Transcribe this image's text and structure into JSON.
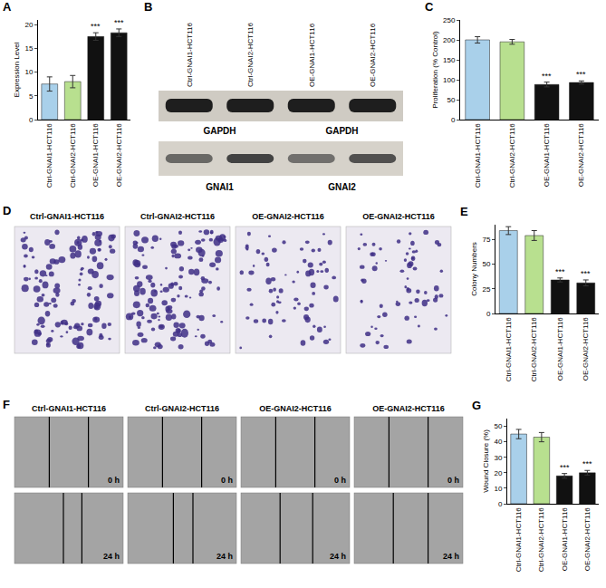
{
  "chart_data": [
    {
      "panel": "A",
      "type": "bar",
      "categories": [
        "Ctrl-GNAI1-HCT116",
        "Ctrl-GNAI2-HCT116",
        "OE-GNAI1-HCT116",
        "OE-GNAI2-HCT116"
      ],
      "values": [
        7.5,
        8,
        17.5,
        18.3
      ],
      "errors": [
        1.5,
        1.3,
        0.8,
        0.8
      ],
      "significance": [
        null,
        null,
        "***",
        "***"
      ],
      "colors": [
        "#a9d0ea",
        "#b8e08f",
        "#111111",
        "#111111"
      ],
      "y_label": "Expression Level",
      "ylim": [
        0,
        21
      ],
      "yticks": [
        0,
        5,
        10,
        15,
        20
      ],
      "grid": false
    },
    {
      "panel": "C",
      "type": "bar",
      "categories": [
        "Ctrl-GNAI1-HCT116",
        "Ctrl-GNAI2-HCT116",
        "OE-GNAI1-HCT116",
        "OE-GNAI2-HCT116"
      ],
      "values": [
        200,
        195,
        88,
        93
      ],
      "errors": [
        8,
        6,
        6,
        4
      ],
      "significance": [
        null,
        null,
        "***",
        "***"
      ],
      "colors": [
        "#a9d0ea",
        "#b8e08f",
        "#111111",
        "#111111"
      ],
      "y_label": "Proliferation (% Control)",
      "ylim": [
        0,
        250
      ],
      "yticks": [
        0,
        50,
        100,
        150,
        200,
        250
      ],
      "grid": false
    },
    {
      "panel": "E",
      "type": "bar",
      "categories": [
        "Ctrl-GNAI1-HCT116",
        "Ctrl-GNAI2-HCT116",
        "OE-GNAI1-HCT116",
        "OE-GNAI2-HCT116"
      ],
      "values": [
        84,
        79,
        34,
        31
      ],
      "errors": [
        4,
        5,
        2,
        3
      ],
      "significance": [
        null,
        null,
        "***",
        "***"
      ],
      "colors": [
        "#a9d0ea",
        "#b8e08f",
        "#111111",
        "#111111"
      ],
      "y_label": "Colony Numbers",
      "ylim": [
        0,
        90
      ],
      "yticks": [
        0,
        25,
        50,
        75
      ],
      "grid": false
    },
    {
      "panel": "G",
      "type": "bar",
      "categories": [
        "Ctrl-GNAI1-HCT116",
        "Ctrl-GNAI2-HCT116",
        "OE-GNAI1-HCT116",
        "OE-GNAI2-HCT116"
      ],
      "values": [
        45,
        43,
        18,
        20
      ],
      "errors": [
        3,
        3,
        1.5,
        1.5
      ],
      "significance": [
        null,
        null,
        "***",
        "***"
      ],
      "colors": [
        "#a9d0ea",
        "#b8e08f",
        "#111111",
        "#111111"
      ],
      "y_label": "Wound Closure (%)",
      "ylim": [
        0,
        55
      ],
      "yticks": [
        0,
        10,
        20,
        30,
        40,
        50
      ],
      "grid": false
    }
  ],
  "blot": {
    "panel": "B",
    "lanes": [
      "Ctrl-GNAI1-HCT116",
      "Ctrl-GNAI2-HCT116",
      "OE-GNAI1-HCT116",
      "OE-GNAI2-HCT116"
    ],
    "rows": [
      {
        "labels": [
          "GAPDH",
          "GAPDH"
        ]
      },
      {
        "labels": [
          "GNAI1",
          "GNAI2"
        ]
      }
    ]
  },
  "colony_images": {
    "panel": "D",
    "titles": [
      "Ctrl-GNAI1-HCT116",
      "Ctrl-GNAI2-HCT116",
      "OE-GNAI2-HCT116",
      "OE-GNAI2-HCT116"
    ]
  },
  "wound_images": {
    "panel": "F",
    "titles": [
      "Ctrl-GNAI1-HCT116",
      "Ctrl-GNAI2-HCT116",
      "OE-GNAI2-HCT116",
      "OE-GNAI2-HCT116"
    ],
    "times": [
      "0 h",
      "24 h"
    ]
  }
}
